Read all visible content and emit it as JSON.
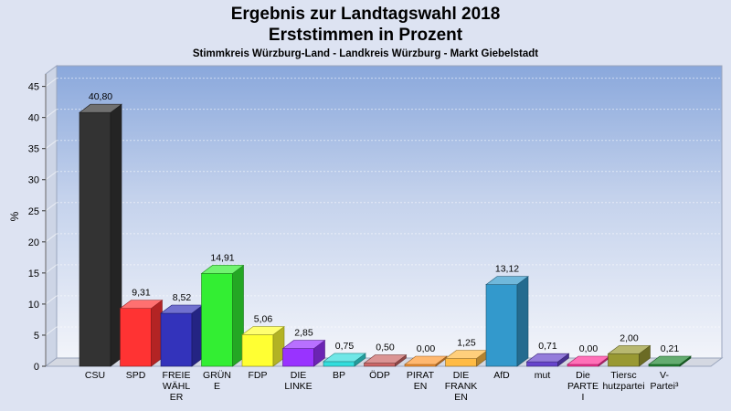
{
  "title_line1": "Ergebnis zur Landtagswahl 2018",
  "title_line2": "Erststimmen in Prozent",
  "subtitle": "Stimmkreis Würzburg-Land - Landkreis Würzburg - Markt Giebelstadt",
  "chart_data": {
    "type": "bar",
    "title": "Ergebnis zur Landtagswahl 2018 Erststimmen in Prozent",
    "subtitle": "Stimmkreis Würzburg-Land - Landkreis Würzburg - Markt Giebelstadt",
    "ylabel": "%",
    "xlabel": "",
    "ylim": [
      0,
      47
    ],
    "yticks": [
      0,
      5,
      10,
      15,
      20,
      25,
      30,
      35,
      40,
      45
    ],
    "grid": true,
    "legend": "none",
    "categories": [
      [
        "CSU"
      ],
      [
        "SPD"
      ],
      [
        "FREIE",
        "WÄHL",
        "ER"
      ],
      [
        "GRÜN",
        "E"
      ],
      [
        "FDP"
      ],
      [
        "DIE",
        "LINKE"
      ],
      [
        "BP"
      ],
      [
        "ÖDP"
      ],
      [
        "PIRAT",
        "EN"
      ],
      [
        "DIE",
        "FRANK",
        "EN"
      ],
      [
        "AfD"
      ],
      [
        "mut"
      ],
      [
        "Die",
        "PARTE",
        "I"
      ],
      [
        "Tiersc",
        "hutzpartei"
      ],
      [
        "V-",
        "Partei³"
      ]
    ],
    "values": [
      40.8,
      9.31,
      8.52,
      14.91,
      5.06,
      2.85,
      0.75,
      0.5,
      0.0,
      1.25,
      13.12,
      0.71,
      0.0,
      2.0,
      0.21
    ],
    "value_labels": [
      "40,80",
      "9,31",
      "8,52",
      "14,91",
      "5,06",
      "2,85",
      "0,75",
      "0,50",
      "0,00",
      "1,25",
      "13,12",
      "0,71",
      "0,00",
      "2,00",
      "0,21"
    ],
    "colors": [
      "#333333",
      "#ff3333",
      "#3333bb",
      "#33ee33",
      "#ffff33",
      "#9933ff",
      "#33dddd",
      "#cc6666",
      "#ff9933",
      "#ffbb44",
      "#3399cc",
      "#6644cc",
      "#ff3399",
      "#999933",
      "#228833"
    ]
  }
}
